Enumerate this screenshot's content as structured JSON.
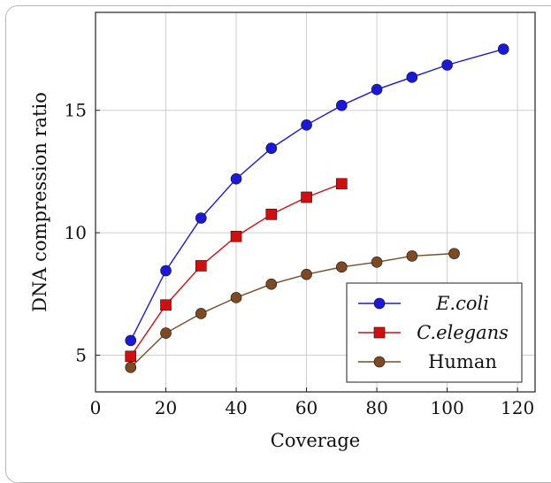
{
  "chart_data": {
    "type": "line",
    "title": "",
    "xlabel": "Coverage",
    "ylabel": "DNA compression ratio",
    "xlim": [
      0,
      125
    ],
    "ylim": [
      3.5,
      19
    ],
    "xticks": [
      0,
      20,
      40,
      60,
      80,
      100,
      120
    ],
    "yticks": [
      5,
      10,
      15
    ],
    "grid": true,
    "legend": "bottom-right",
    "series": [
      {
        "name": "E.coli",
        "color": "#1a1ad6",
        "marker": "circle",
        "x": [
          10,
          20,
          30,
          40,
          50,
          60,
          70,
          80,
          90,
          100,
          116
        ],
        "y": [
          5.6,
          8.45,
          10.6,
          12.2,
          13.45,
          14.4,
          15.2,
          15.85,
          16.35,
          16.85,
          17.5
        ]
      },
      {
        "name": "C.elegans",
        "color": "#d01010",
        "marker": "square",
        "x": [
          10,
          20,
          30,
          40,
          50,
          60,
          70
        ],
        "y": [
          4.95,
          7.05,
          8.65,
          9.85,
          10.75,
          11.45,
          12.0
        ]
      },
      {
        "name": "Human",
        "color": "#7d4a24",
        "marker": "circle",
        "x": [
          10,
          20,
          30,
          40,
          50,
          60,
          70,
          80,
          90,
          102
        ],
        "y": [
          4.5,
          5.9,
          6.7,
          7.35,
          7.9,
          8.3,
          8.6,
          8.8,
          9.05,
          9.15
        ]
      }
    ]
  }
}
